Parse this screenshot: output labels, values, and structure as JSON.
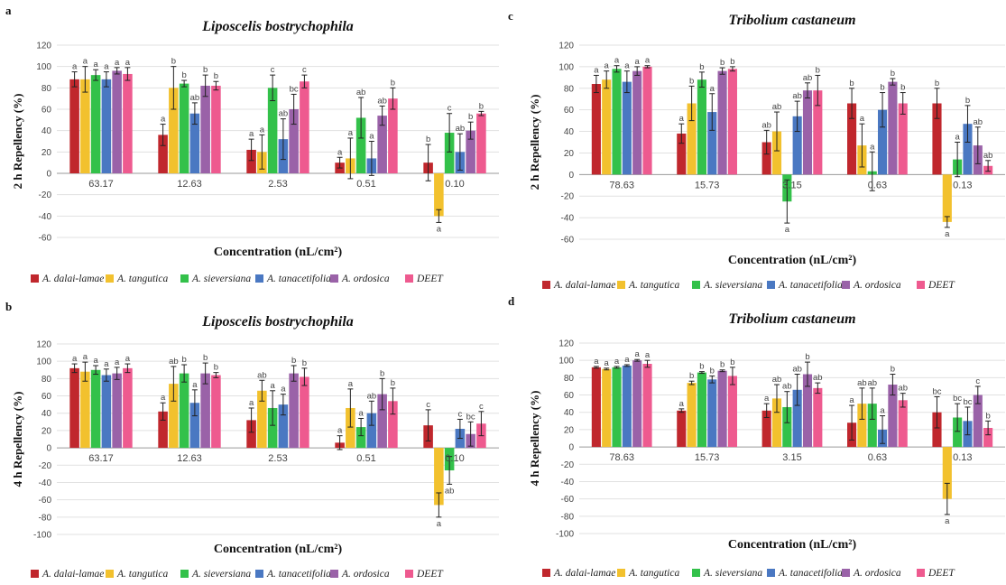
{
  "legend_series": [
    "A. dalai-lamae",
    "A. tangutica",
    "A. sieversiana",
    "A. tanacetifolia",
    "A. ordosica",
    "DEET"
  ],
  "colors": [
    "#C0272D",
    "#F2C12E",
    "#33C14A",
    "#4A78C2",
    "#9A62A8",
    "#EE5A8F"
  ],
  "chart_data": [
    {
      "panel": "a",
      "type": "bar",
      "title": "Liposcelis bostrychophila",
      "xlabel": "Concentration (nL/cm²)",
      "ylabel": "2 h Repellency (%)",
      "ylim": [
        -60,
        120
      ],
      "yticks": [
        -60,
        -40,
        -20,
        0,
        20,
        40,
        60,
        80,
        100,
        120
      ],
      "grid": true,
      "legend_position": "bottom",
      "categories": [
        "63.17",
        "12.63",
        "2.53",
        "0.51",
        "0.10"
      ],
      "series": [
        {
          "name": "A. dalai-lamae",
          "values": [
            88,
            36,
            22,
            10,
            10
          ],
          "err": [
            7,
            10,
            10,
            5,
            17
          ],
          "sig": [
            "a",
            "a",
            "a",
            "a",
            "b"
          ]
        },
        {
          "name": "A. tangutica",
          "values": [
            88,
            80,
            20,
            14,
            -40
          ],
          "err": [
            12,
            20,
            16,
            19,
            6
          ],
          "sig": [
            "a",
            "b",
            "a",
            "a",
            "a"
          ]
        },
        {
          "name": "A. sieversiana",
          "values": [
            92,
            84,
            80,
            52,
            38
          ],
          "err": [
            5,
            3,
            12,
            19,
            18
          ],
          "sig": [
            "a",
            "b",
            "c",
            "ab",
            "c"
          ]
        },
        {
          "name": "A. tanacetifolia",
          "values": [
            88,
            56,
            32,
            14,
            20
          ],
          "err": [
            7,
            10,
            19,
            16,
            17
          ],
          "sig": [
            "a",
            "ab",
            "ab",
            "a",
            "ab"
          ]
        },
        {
          "name": "A. ordosica",
          "values": [
            96,
            82,
            60,
            54,
            40
          ],
          "err": [
            3,
            10,
            14,
            9,
            8
          ],
          "sig": [
            "a",
            "b",
            "bc",
            "ab",
            "b"
          ]
        },
        {
          "name": "DEET",
          "values": [
            93,
            82,
            86,
            70,
            56
          ],
          "err": [
            6,
            4,
            6,
            10,
            2
          ],
          "sig": [
            "a",
            "b",
            "c",
            "b",
            "b"
          ]
        }
      ]
    },
    {
      "panel": "c",
      "type": "bar",
      "title": "Tribolium castaneum",
      "xlabel": "Concentration (nL/cm²)",
      "ylabel": "2 h Repellency (%)",
      "ylim": [
        -60,
        120
      ],
      "yticks": [
        -60,
        -40,
        -20,
        0,
        20,
        40,
        60,
        80,
        100,
        120
      ],
      "grid": true,
      "legend_position": "bottom",
      "categories": [
        "78.63",
        "15.73",
        "3.15",
        "0.63",
        "0.13"
      ],
      "series": [
        {
          "name": "A. dalai-lamae",
          "values": [
            84,
            38,
            30,
            66,
            66
          ],
          "err": [
            8,
            9,
            11,
            14,
            14
          ],
          "sig": [
            "a",
            "a",
            "ab",
            "b",
            "b"
          ]
        },
        {
          "name": "A. tangutica",
          "values": [
            88,
            66,
            40,
            27,
            -44
          ],
          "err": [
            8,
            16,
            18,
            20,
            5
          ],
          "sig": [
            "a",
            "b",
            "ab",
            "a",
            "a"
          ]
        },
        {
          "name": "A. sieversiana",
          "values": [
            98,
            88,
            -25,
            3,
            14
          ],
          "err": [
            3,
            7,
            20,
            18,
            16
          ],
          "sig": [
            "a",
            "b",
            "a",
            "a",
            "a"
          ]
        },
        {
          "name": "A. tanacetifolia",
          "values": [
            86,
            58,
            54,
            60,
            47
          ],
          "err": [
            10,
            17,
            14,
            16,
            17
          ],
          "sig": [
            "a",
            "a",
            "ab",
            "b",
            "b"
          ]
        },
        {
          "name": "A. ordosica",
          "values": [
            96,
            96,
            78,
            86,
            27
          ],
          "err": [
            4,
            3,
            7,
            3,
            17
          ],
          "sig": [
            "a",
            "b",
            "ab",
            "b",
            "ab"
          ]
        },
        {
          "name": "DEET",
          "values": [
            100,
            98,
            78,
            66,
            8
          ],
          "err": [
            1,
            2,
            14,
            10,
            5
          ],
          "sig": [
            "a",
            "b",
            "b",
            "b",
            "ab"
          ]
        }
      ]
    },
    {
      "panel": "b",
      "type": "bar",
      "title": "Liposcelis bostrychophila",
      "xlabel": "Concentration (nL/cm²)",
      "ylabel": "4 h Repellency (%)",
      "ylim": [
        -100,
        120
      ],
      "yticks": [
        -100,
        -80,
        -60,
        -40,
        -20,
        0,
        20,
        40,
        60,
        80,
        100,
        120
      ],
      "grid": true,
      "legend_position": "bottom",
      "categories": [
        "63.17",
        "12.63",
        "2.53",
        "0.51",
        "0.10"
      ],
      "series": [
        {
          "name": "A. dalai-lamae",
          "values": [
            92,
            42,
            32,
            6,
            26
          ],
          "err": [
            5,
            10,
            14,
            8,
            18
          ],
          "sig": [
            "a",
            "a",
            "a",
            "a",
            "c"
          ]
        },
        {
          "name": "A. tangutica",
          "values": [
            88,
            74,
            66,
            46,
            -66
          ],
          "err": [
            11,
            20,
            12,
            22,
            14
          ],
          "sig": [
            "a",
            "ab",
            "ab",
            "a",
            "a"
          ]
        },
        {
          "name": "A. sieversiana",
          "values": [
            90,
            86,
            46,
            24,
            -26
          ],
          "err": [
            5,
            10,
            20,
            10,
            16
          ],
          "sig": [
            "a",
            "b",
            "a",
            "a",
            "ab"
          ]
        },
        {
          "name": "A. tanacetifolia",
          "values": [
            84,
            52,
            50,
            40,
            22
          ],
          "err": [
            7,
            15,
            12,
            14,
            11
          ],
          "sig": [
            "a",
            "a",
            "a",
            "ab",
            "c"
          ]
        },
        {
          "name": "A. ordosica",
          "values": [
            86,
            86,
            86,
            62,
            16
          ],
          "err": [
            7,
            12,
            9,
            18,
            14
          ],
          "sig": [
            "a",
            "b",
            "b",
            "b",
            "bc"
          ]
        },
        {
          "name": "DEET",
          "values": [
            92,
            84,
            82,
            54,
            28
          ],
          "err": [
            5,
            3,
            10,
            15,
            14
          ],
          "sig": [
            "a",
            "b",
            "b",
            "b",
            "c"
          ]
        }
      ]
    },
    {
      "panel": "d",
      "type": "bar",
      "title": "Tribolium castaneum",
      "xlabel": "Concentration (nL/cm²)",
      "ylabel": "4 h Repellency (%)",
      "ylim": [
        -100,
        120
      ],
      "yticks": [
        -100,
        -80,
        -60,
        -40,
        -20,
        0,
        20,
        40,
        60,
        80,
        100,
        120
      ],
      "grid": true,
      "legend_position": "bottom",
      "categories": [
        "78.63",
        "15.73",
        "3.15",
        "0.63",
        "0.13"
      ],
      "series": [
        {
          "name": "A. dalai-lamae",
          "values": [
            92,
            42,
            42,
            28,
            40
          ],
          "err": [
            1,
            2,
            8,
            20,
            18
          ],
          "sig": [
            "a",
            "a",
            "a",
            "a",
            "bc"
          ]
        },
        {
          "name": "A. tangutica",
          "values": [
            90,
            74,
            56,
            50,
            -60
          ],
          "err": [
            1,
            2,
            16,
            18,
            18
          ],
          "sig": [
            "a",
            "b",
            "ab",
            "ab",
            "a"
          ]
        },
        {
          "name": "A. sieversiana",
          "values": [
            92,
            86,
            46,
            50,
            34
          ],
          "err": [
            1,
            1,
            18,
            18,
            16
          ],
          "sig": [
            "a",
            "b",
            "ab",
            "ab",
            "bc"
          ]
        },
        {
          "name": "A. tanacetifolia",
          "values": [
            94,
            78,
            66,
            20,
            30
          ],
          "err": [
            1,
            4,
            18,
            16,
            16
          ],
          "sig": [
            "a",
            "b",
            "ab",
            "a",
            "bc"
          ]
        },
        {
          "name": "A. ordosica",
          "values": [
            100,
            88,
            84,
            72,
            60
          ],
          "err": [
            1,
            1,
            14,
            12,
            10
          ],
          "sig": [
            "a",
            "b",
            "b",
            "b",
            "c"
          ]
        },
        {
          "name": "DEET",
          "values": [
            96,
            82,
            68,
            54,
            22
          ],
          "err": [
            4,
            10,
            6,
            8,
            8
          ],
          "sig": [
            "a",
            "b",
            "ab",
            "ab",
            "b"
          ]
        }
      ]
    }
  ]
}
